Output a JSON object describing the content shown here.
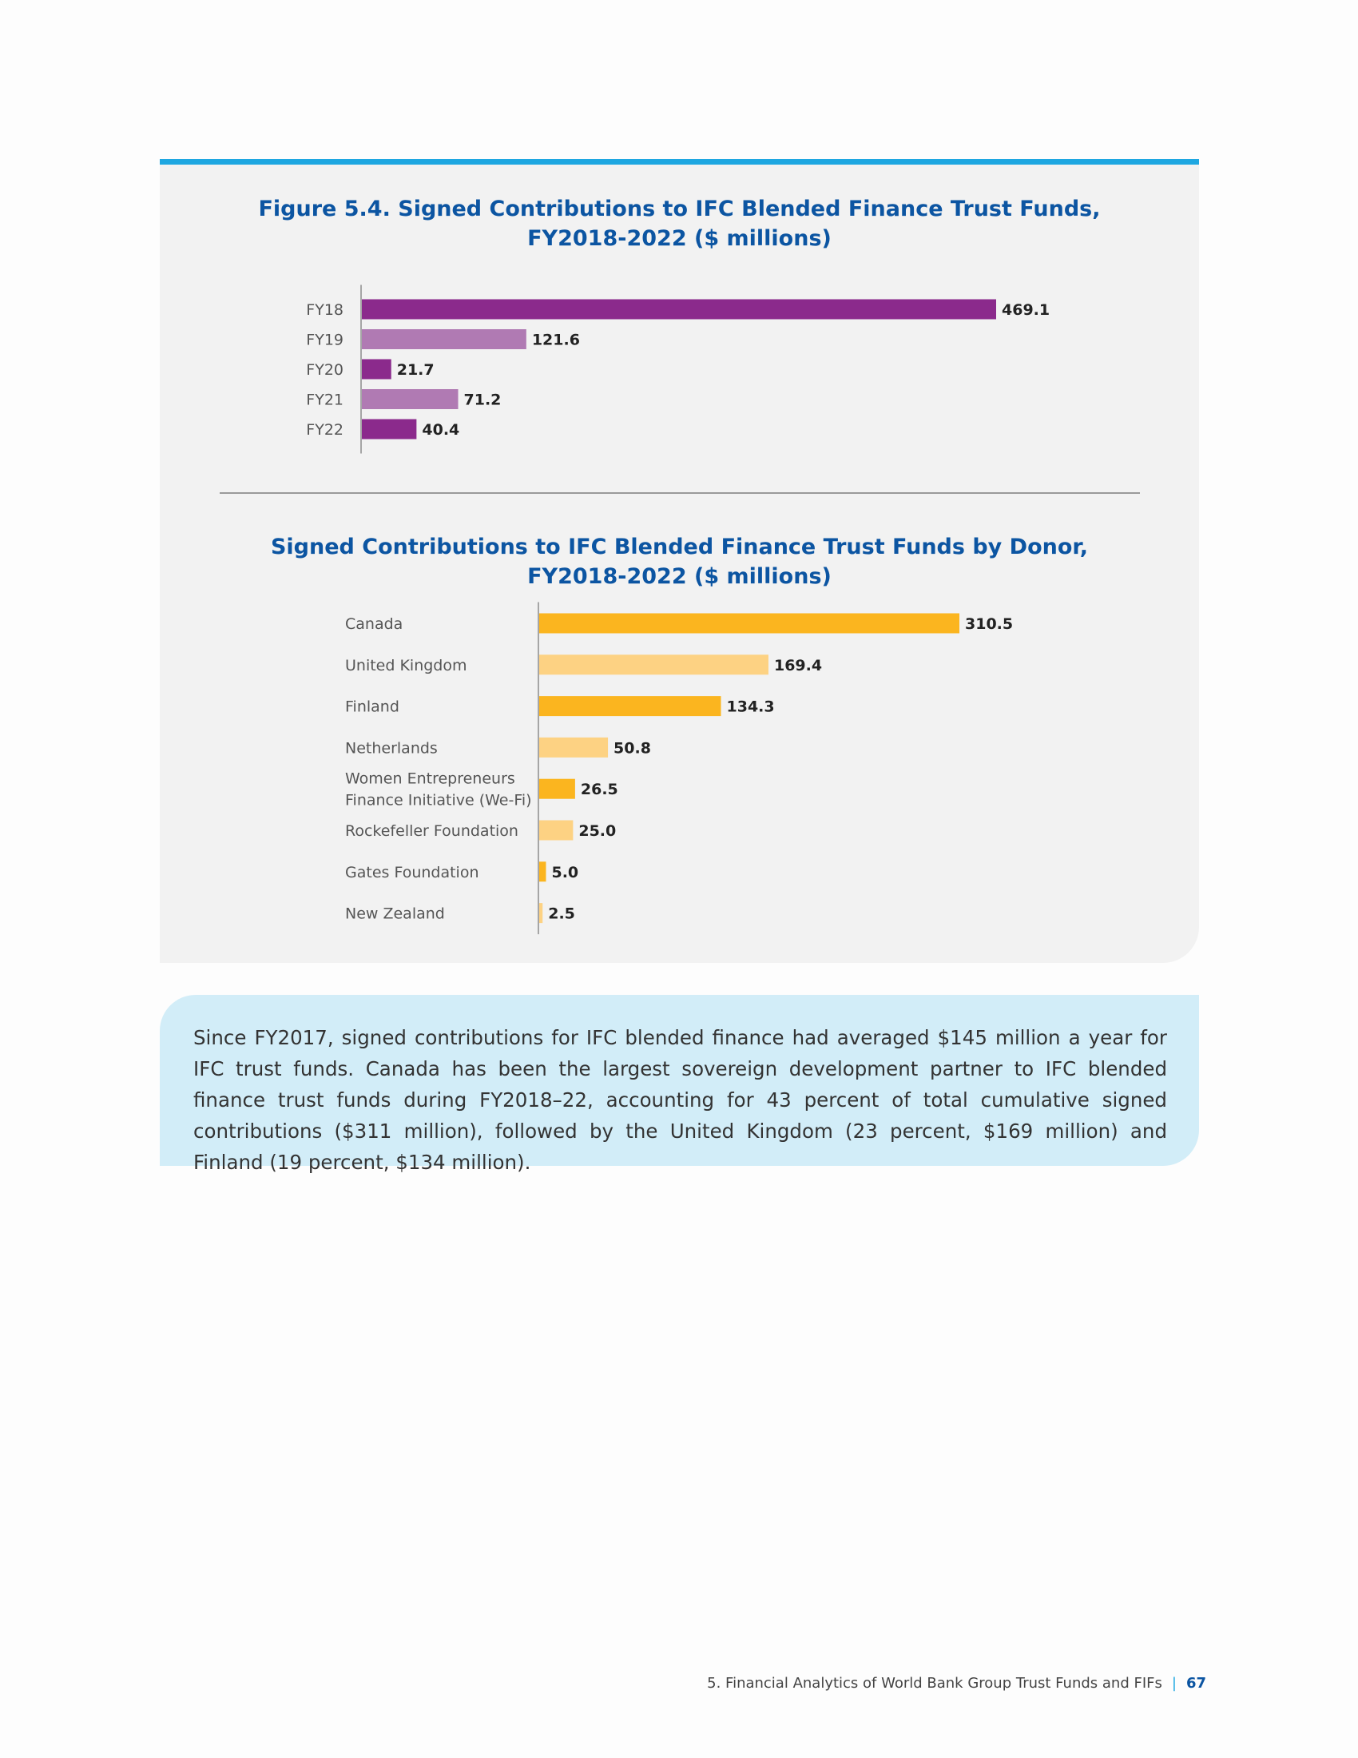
{
  "charts_text": {
    "title1_line1": "Figure 5.4. Signed Contributions to IFC Blended Finance Trust Funds,",
    "title1_line2": "FY2018-2022 ($ millions)",
    "title2_line1": "Signed Contributions to IFC Blended Finance Trust Funds by Donor,",
    "title2_line2": "FY2018-2022 ($ millions)"
  },
  "chart_data": [
    {
      "type": "bar",
      "orientation": "horizontal",
      "title": "Figure 5.4. Signed Contributions to IFC Blended Finance Trust Funds, FY2018-2022 ($ millions)",
      "categories": [
        "FY18",
        "FY19",
        "FY20",
        "FY21",
        "FY22"
      ],
      "values": [
        469.1,
        121.6,
        21.7,
        71.2,
        40.4
      ],
      "value_labels": [
        "469.1",
        "121.6",
        "21.7",
        "71.2",
        "40.4"
      ],
      "colors": [
        "#8b2a8c",
        "#b07ab3",
        "#8b2a8c",
        "#b07ab3",
        "#8b2a8c"
      ],
      "xlim": [
        0,
        469.1
      ],
      "grid": false,
      "legend": "none"
    },
    {
      "type": "bar",
      "orientation": "horizontal",
      "title": "Signed Contributions to IFC Blended Finance Trust Funds by Donor, FY2018-2022 ($ millions)",
      "categories": [
        "Canada",
        "United Kingdom",
        "Finland",
        "Netherlands",
        "Women Entrepreneurs Finance Initiative (We-Fi)",
        "Rockefeller Foundation",
        "Gates Foundation",
        "New Zealand"
      ],
      "category_lines": [
        [
          "Canada"
        ],
        [
          "United Kingdom"
        ],
        [
          "Finland"
        ],
        [
          "Netherlands"
        ],
        [
          "Women Entrepreneurs",
          "Finance Initiative (We-Fi)"
        ],
        [
          "Rockefeller Foundation"
        ],
        [
          "Gates Foundation"
        ],
        [
          "New Zealand"
        ]
      ],
      "values": [
        310.5,
        169.4,
        134.3,
        50.8,
        26.5,
        25.0,
        5.0,
        2.5
      ],
      "value_labels": [
        "310.5",
        "169.4",
        "134.3",
        "50.8",
        "26.5",
        "25.0",
        "5.0",
        "2.5"
      ],
      "colors": [
        "#fbb51f",
        "#fdd283",
        "#fbb51f",
        "#fdd283",
        "#fbb51f",
        "#fdd283",
        "#fbb51f",
        "#fdd283"
      ],
      "xlim": [
        0,
        310.5
      ],
      "grid": false,
      "legend": "none"
    }
  ],
  "callout": {
    "text": "Since FY2017, signed contributions for IFC blended finance had averaged $145 million a year for IFC trust funds. Canada has been the largest sovereign development partner to IFC blended finance trust funds during FY2018–22, accounting for 43 percent of total cumulative signed contributions ($311 million), followed by the United Kingdom (23 percent, $169 million) and Finland (19 percent, $134 million)."
  },
  "footer": {
    "text": "5. Financial Analytics of World Bank Group Trust Funds and FIFs",
    "separator": "|",
    "page_number": "67"
  }
}
